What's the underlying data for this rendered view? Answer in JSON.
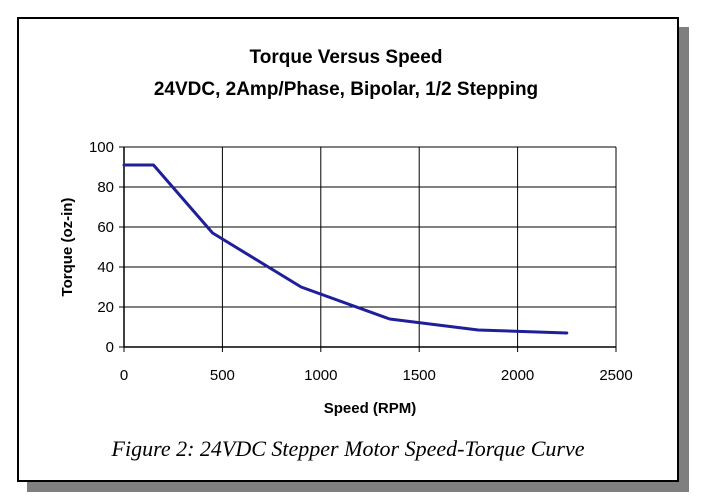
{
  "chart_data": {
    "type": "line",
    "title": "Torque Versus Speed",
    "subtitle": "24VDC, 2Amp/Phase, Bipolar, 1/2 Stepping",
    "xlabel": "Speed (RPM)",
    "ylabel": "Torque (oz-in)",
    "xlim": [
      0,
      2500
    ],
    "ylim": [
      0,
      100
    ],
    "xticks": [
      0,
      500,
      1000,
      1500,
      2000,
      2500
    ],
    "yticks": [
      0,
      20,
      40,
      60,
      80,
      100
    ],
    "grid": true,
    "legend": "none",
    "series": [
      {
        "color": "#1f1f9a",
        "x": [
          0,
          150,
          450,
          900,
          1350,
          1800,
          2250
        ],
        "y": [
          91,
          91,
          57,
          30,
          14,
          8.5,
          7
        ]
      }
    ]
  },
  "caption": "Figure 2: 24VDC Stepper Motor Speed-Torque Curve",
  "colors": {
    "line": "#1f1f9a",
    "grid": "#000000",
    "shadow": "#7f7f7f"
  }
}
